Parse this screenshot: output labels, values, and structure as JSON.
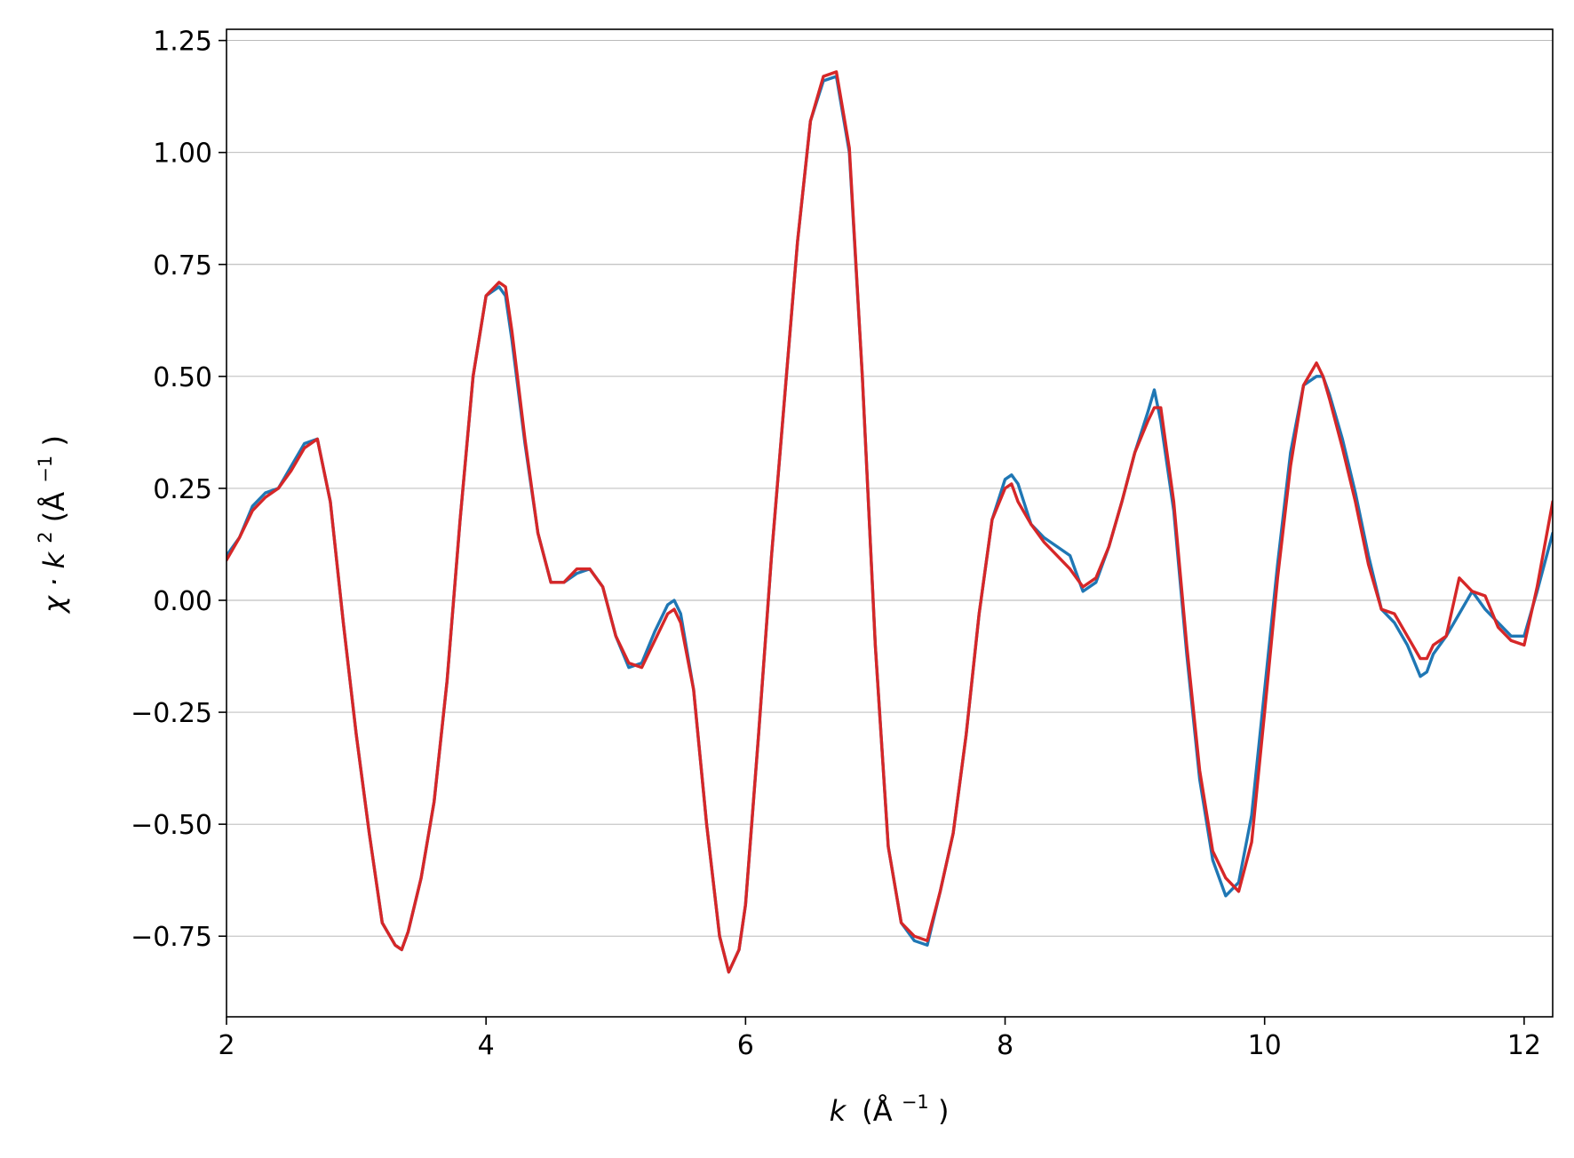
{
  "chart_data": {
    "type": "line",
    "title": "",
    "xlabel": {
      "var": "k",
      "unit": "(Å",
      "sup": "−1",
      "close": ")"
    },
    "ylabel": {
      "a": "χ · k",
      "sup2": "2",
      "unit": " (Å",
      "sup": "−1",
      "close": ")"
    },
    "xlim": [
      2.0,
      12.22
    ],
    "ylim": [
      -0.93,
      1.275
    ],
    "xticks": [
      2,
      4,
      6,
      8,
      10,
      12
    ],
    "xtick_labels": [
      "2",
      "4",
      "6",
      "8",
      "10",
      "12"
    ],
    "yticks": [
      -0.75,
      -0.5,
      -0.25,
      0.0,
      0.25,
      0.5,
      0.75,
      1.0,
      1.25
    ],
    "ytick_labels": [
      "−0.75",
      "−0.50",
      "−0.25",
      "0.00",
      "0.25",
      "0.50",
      "0.75",
      "1.00",
      "1.25"
    ],
    "grid": "horizontal",
    "series": [
      {
        "color": "#1f77b4",
        "x": [
          2.0,
          2.1,
          2.2,
          2.3,
          2.4,
          2.5,
          2.6,
          2.7,
          2.8,
          2.9,
          3.0,
          3.1,
          3.2,
          3.3,
          3.35,
          3.4,
          3.5,
          3.6,
          3.7,
          3.8,
          3.9,
          4.0,
          4.1,
          4.15,
          4.2,
          4.3,
          4.4,
          4.5,
          4.6,
          4.7,
          4.8,
          4.9,
          5.0,
          5.1,
          5.2,
          5.3,
          5.4,
          5.45,
          5.5,
          5.6,
          5.7,
          5.8,
          5.87,
          5.95,
          6.0,
          6.1,
          6.2,
          6.3,
          6.4,
          6.5,
          6.6,
          6.7,
          6.8,
          6.9,
          7.0,
          7.1,
          7.2,
          7.3,
          7.4,
          7.5,
          7.6,
          7.7,
          7.8,
          7.9,
          8.0,
          8.05,
          8.1,
          8.2,
          8.3,
          8.4,
          8.5,
          8.6,
          8.7,
          8.8,
          8.9,
          9.0,
          9.1,
          9.15,
          9.2,
          9.3,
          9.4,
          9.5,
          9.6,
          9.7,
          9.8,
          9.9,
          10.0,
          10.1,
          10.2,
          10.3,
          10.4,
          10.45,
          10.5,
          10.6,
          10.7,
          10.8,
          10.9,
          11.0,
          11.1,
          11.2,
          11.25,
          11.3,
          11.4,
          11.5,
          11.6,
          11.7,
          11.8,
          11.9,
          12.0,
          12.1,
          12.22
        ],
        "y": [
          0.1,
          0.14,
          0.21,
          0.24,
          0.25,
          0.3,
          0.35,
          0.36,
          0.22,
          -0.05,
          -0.3,
          -0.52,
          -0.72,
          -0.77,
          -0.78,
          -0.74,
          -0.62,
          -0.45,
          -0.18,
          0.18,
          0.5,
          0.68,
          0.7,
          0.68,
          0.58,
          0.35,
          0.15,
          0.04,
          0.04,
          0.06,
          0.07,
          0.03,
          -0.08,
          -0.15,
          -0.14,
          -0.07,
          -0.01,
          0.0,
          -0.03,
          -0.2,
          -0.5,
          -0.75,
          -0.83,
          -0.78,
          -0.68,
          -0.3,
          0.1,
          0.45,
          0.8,
          1.07,
          1.16,
          1.17,
          1.0,
          0.5,
          -0.1,
          -0.55,
          -0.72,
          -0.76,
          -0.77,
          -0.65,
          -0.52,
          -0.3,
          -0.03,
          0.18,
          0.27,
          0.28,
          0.26,
          0.17,
          0.14,
          0.12,
          0.1,
          0.02,
          0.04,
          0.12,
          0.22,
          0.33,
          0.42,
          0.47,
          0.4,
          0.2,
          -0.12,
          -0.4,
          -0.58,
          -0.66,
          -0.63,
          -0.48,
          -0.2,
          0.08,
          0.33,
          0.48,
          0.5,
          0.5,
          0.46,
          0.36,
          0.24,
          0.1,
          -0.02,
          -0.05,
          -0.1,
          -0.17,
          -0.16,
          -0.12,
          -0.08,
          -0.03,
          0.02,
          -0.02,
          -0.05,
          -0.08,
          -0.08,
          0.02,
          0.15
        ]
      },
      {
        "color": "#d62728",
        "x": [
          2.0,
          2.1,
          2.2,
          2.3,
          2.4,
          2.5,
          2.6,
          2.7,
          2.8,
          2.9,
          3.0,
          3.1,
          3.2,
          3.3,
          3.35,
          3.4,
          3.5,
          3.6,
          3.7,
          3.8,
          3.9,
          4.0,
          4.1,
          4.15,
          4.2,
          4.3,
          4.4,
          4.5,
          4.6,
          4.7,
          4.8,
          4.9,
          5.0,
          5.1,
          5.2,
          5.3,
          5.4,
          5.45,
          5.5,
          5.6,
          5.7,
          5.8,
          5.87,
          5.95,
          6.0,
          6.1,
          6.2,
          6.3,
          6.4,
          6.5,
          6.6,
          6.7,
          6.8,
          6.9,
          7.0,
          7.1,
          7.2,
          7.3,
          7.4,
          7.5,
          7.6,
          7.7,
          7.8,
          7.9,
          8.0,
          8.05,
          8.1,
          8.2,
          8.3,
          8.4,
          8.5,
          8.6,
          8.7,
          8.8,
          8.9,
          9.0,
          9.1,
          9.15,
          9.2,
          9.3,
          9.4,
          9.5,
          9.6,
          9.7,
          9.8,
          9.9,
          10.0,
          10.1,
          10.2,
          10.3,
          10.4,
          10.45,
          10.5,
          10.6,
          10.7,
          10.8,
          10.9,
          11.0,
          11.1,
          11.2,
          11.25,
          11.3,
          11.4,
          11.5,
          11.6,
          11.7,
          11.8,
          11.9,
          12.0,
          12.1,
          12.22
        ],
        "y": [
          0.09,
          0.14,
          0.2,
          0.23,
          0.25,
          0.29,
          0.34,
          0.36,
          0.22,
          -0.05,
          -0.3,
          -0.52,
          -0.72,
          -0.77,
          -0.78,
          -0.74,
          -0.62,
          -0.45,
          -0.18,
          0.18,
          0.5,
          0.68,
          0.71,
          0.7,
          0.6,
          0.36,
          0.15,
          0.04,
          0.04,
          0.07,
          0.07,
          0.03,
          -0.08,
          -0.14,
          -0.15,
          -0.09,
          -0.03,
          -0.02,
          -0.05,
          -0.2,
          -0.5,
          -0.75,
          -0.83,
          -0.78,
          -0.68,
          -0.3,
          0.1,
          0.45,
          0.8,
          1.07,
          1.17,
          1.18,
          1.01,
          0.5,
          -0.1,
          -0.55,
          -0.72,
          -0.75,
          -0.76,
          -0.65,
          -0.52,
          -0.3,
          -0.03,
          0.18,
          0.25,
          0.26,
          0.22,
          0.17,
          0.13,
          0.1,
          0.07,
          0.03,
          0.05,
          0.12,
          0.22,
          0.33,
          0.4,
          0.43,
          0.43,
          0.22,
          -0.1,
          -0.38,
          -0.56,
          -0.62,
          -0.65,
          -0.54,
          -0.25,
          0.05,
          0.3,
          0.48,
          0.53,
          0.5,
          0.45,
          0.34,
          0.22,
          0.08,
          -0.02,
          -0.03,
          -0.08,
          -0.13,
          -0.13,
          -0.1,
          -0.08,
          0.05,
          0.02,
          0.01,
          -0.06,
          -0.09,
          -0.1,
          0.03,
          0.22
        ]
      }
    ]
  }
}
